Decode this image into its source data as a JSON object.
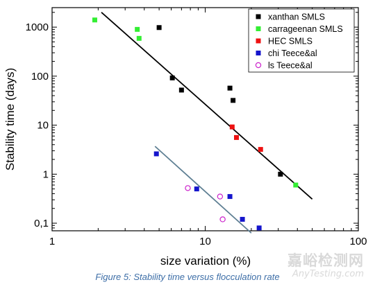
{
  "chart_data": {
    "type": "scatter",
    "xscale": "log",
    "yscale": "log",
    "xlim": [
      1,
      100
    ],
    "ylim": [
      0.07,
      2500
    ],
    "xlabel": "size variation (%)",
    "ylabel": "Stability time (days)",
    "xticks": [
      {
        "value": 1,
        "label": "1"
      },
      {
        "value": 10,
        "label": "10"
      },
      {
        "value": 100,
        "label": "100"
      }
    ],
    "yticks": [
      {
        "value": 0.1,
        "label": "0,1"
      },
      {
        "value": 1,
        "label": "1"
      },
      {
        "value": 10,
        "label": "10"
      },
      {
        "value": 100,
        "label": "100"
      },
      {
        "value": 1000,
        "label": "1000"
      }
    ],
    "legend_position": "top-right",
    "series": [
      {
        "name": "xanthan SMLS",
        "marker": "square",
        "color": "#000000",
        "points": [
          [
            5.0,
            980
          ],
          [
            6.1,
            92
          ],
          [
            7.0,
            52
          ],
          [
            14.5,
            57
          ],
          [
            15.2,
            32
          ],
          [
            31,
            1.0
          ]
        ]
      },
      {
        "name": "carrageenan SMLS",
        "marker": "square",
        "color": "#33ee33",
        "points": [
          [
            1.9,
            1400
          ],
          [
            3.6,
            900
          ],
          [
            3.7,
            590
          ],
          [
            39,
            0.6
          ]
        ]
      },
      {
        "name": "HEC SMLS",
        "marker": "square",
        "color": "#ee1111",
        "points": [
          [
            15.0,
            9.2
          ],
          [
            16.0,
            5.6
          ],
          [
            23,
            3.2
          ]
        ]
      },
      {
        "name": "chi Teece&al",
        "marker": "square",
        "color": "#1515cc",
        "points": [
          [
            4.8,
            2.6
          ],
          [
            8.8,
            0.5
          ],
          [
            14.5,
            0.35
          ],
          [
            17.5,
            0.12
          ],
          [
            22.5,
            0.08
          ]
        ]
      },
      {
        "name": "ls Teece&al",
        "marker": "circle-open",
        "color": "#cc22cc",
        "points": [
          [
            7.7,
            0.52
          ],
          [
            12.5,
            0.35
          ],
          [
            13.0,
            0.12
          ]
        ]
      }
    ],
    "trendlines": [
      {
        "color": "#000000",
        "from": [
          2.1,
          2000
        ],
        "to": [
          50,
          0.31
        ]
      },
      {
        "color": "#5e7f93",
        "from": [
          4.7,
          3.7
        ],
        "to": [
          20,
          0.063
        ]
      }
    ]
  },
  "caption": "Figure 5: Stability time versus flocculation rate",
  "watermark": {
    "cn": "嘉峪检测网",
    "en": "AnyTesting.com"
  }
}
